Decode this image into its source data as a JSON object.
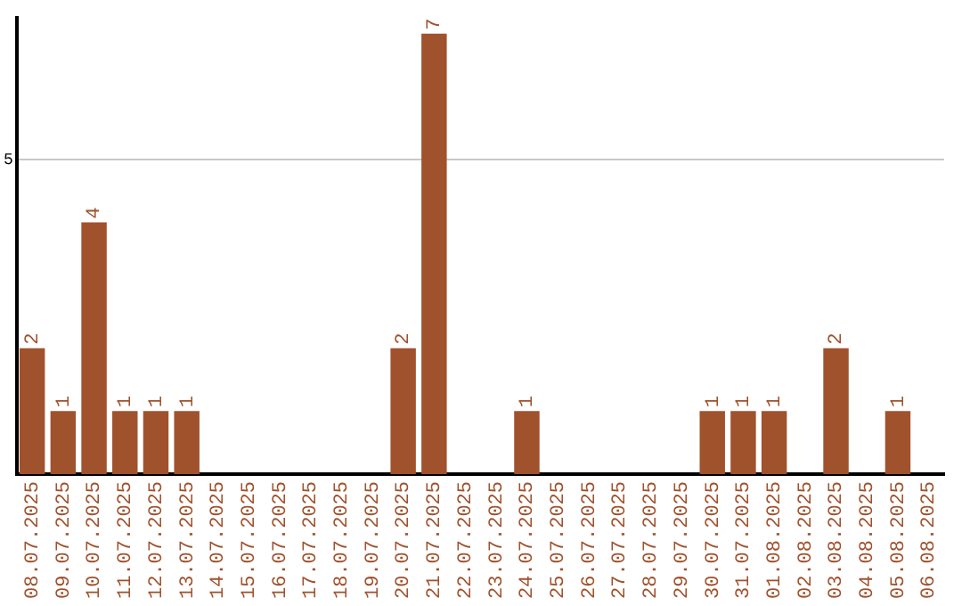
{
  "chart_data": {
    "type": "bar",
    "categories": [
      "08.07.2025",
      "09.07.2025",
      "10.07.2025",
      "11.07.2025",
      "12.07.2025",
      "13.07.2025",
      "14.07.2025",
      "15.07.2025",
      "16.07.2025",
      "17.07.2025",
      "18.07.2025",
      "19.07.2025",
      "20.07.2025",
      "21.07.2025",
      "22.07.2025",
      "23.07.2025",
      "24.07.2025",
      "25.07.2025",
      "26.07.2025",
      "27.07.2025",
      "28.07.2025",
      "29.07.2025",
      "30.07.2025",
      "31.07.2025",
      "01.08.2025",
      "02.08.2025",
      "03.08.2025",
      "04.08.2025",
      "05.08.2025",
      "06.08.2025"
    ],
    "values": [
      2,
      1,
      4,
      1,
      1,
      1,
      0,
      0,
      0,
      0,
      0,
      0,
      2,
      7,
      0,
      0,
      1,
      0,
      0,
      0,
      0,
      0,
      1,
      1,
      1,
      0,
      2,
      0,
      1,
      0
    ],
    "value_labels": [
      "2",
      "1",
      "4",
      "1",
      "1",
      "1",
      null,
      null,
      null,
      null,
      null,
      null,
      "2",
      "7",
      null,
      null,
      "1",
      null,
      null,
      null,
      null,
      null,
      "1",
      "1",
      "1",
      null,
      "2",
      null,
      "1",
      null
    ],
    "color": "#a0522d",
    "ylim": [
      0,
      7.25
    ],
    "yticks": [
      5
    ],
    "grid": "y",
    "legend": false
  }
}
